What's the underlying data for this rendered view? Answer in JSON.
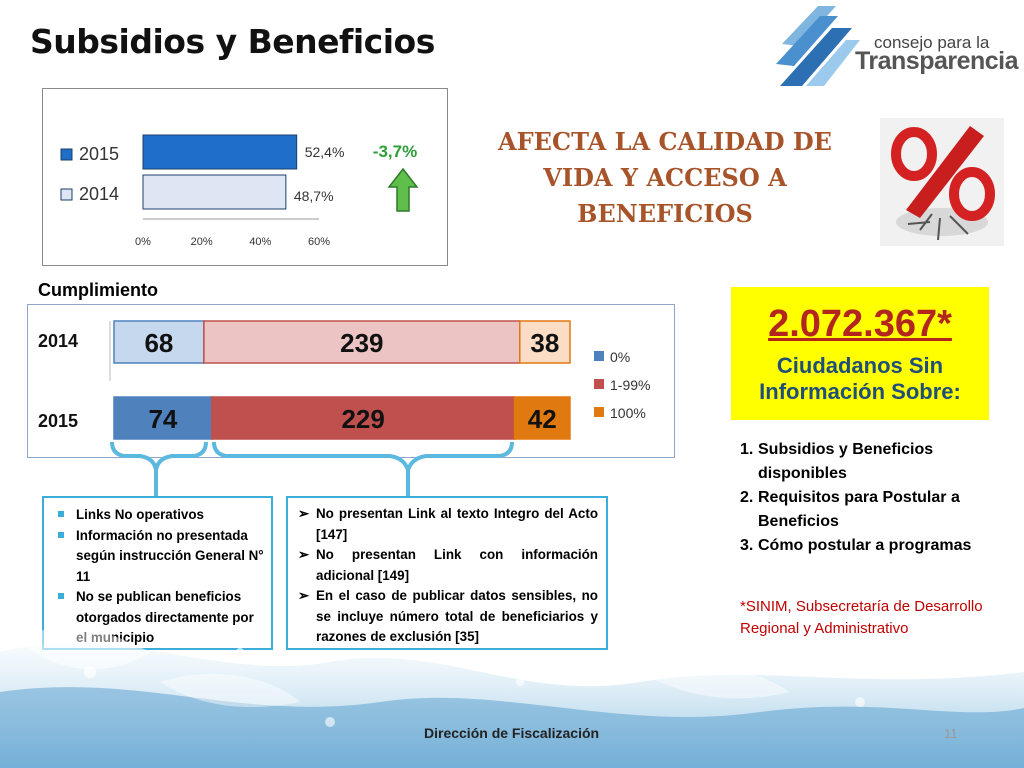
{
  "slide": {
    "title": "Subsidios y Beneficios",
    "logo_line1": "consejo para la",
    "logo_line2": "Transparencia",
    "headline": "AFECTA LA CALIDAD DE VIDA Y ACCESO A BENEFICIOS",
    "cumplimiento_label": "Cumplimiento",
    "big_number": "2.072.367*",
    "big_number_caption_line1": "Ciudadanos Sin",
    "big_number_caption_line2": "Información Sobre:",
    "info_list": [
      {
        "n": "1.",
        "text": "Subsidios y Beneficios disponibles"
      },
      {
        "n": "2.",
        "text": "Requisitos para Postular a Beneficios"
      },
      {
        "n": "3.",
        "text": "Cómo postular a programas"
      }
    ],
    "source_note": "*SINIM, Subsecretaría de Desarrollo Regional y Administrativo",
    "box_left_items": [
      "Links No operativos",
      "Información no presentada según instrucción General N° 11",
      "No se publican beneficios otorgados directamente por el municipio"
    ],
    "box_right_items": [
      "No presentan Link al texto Integro del Acto [147]",
      "No presentan Link con información adicional [149]",
      "En el caso de publicar datos sensibles, no se incluye número total de beneficiarios y razones de exclusión [35]"
    ],
    "footer": "Dirección de Fiscalización",
    "page_number": "11"
  },
  "colors": {
    "bar_2015": "#1f6fc8",
    "bar_2014": "#dde6f2",
    "seg_0": "#4f81bd",
    "seg_0_2014": "#c5d8ee",
    "seg_1_99": "#c0504d",
    "seg_1_99_2014": "#ecc4c4",
    "seg_100": "#e07a10",
    "seg_100_2014": "#fbdcc4",
    "delta": "#2e9e38",
    "headline": "#a8542a",
    "big_number": "#b3261e"
  },
  "chart_data": [
    {
      "type": "bar",
      "orientation": "horizontal",
      "categories": [
        "2015",
        "2014"
      ],
      "values": [
        52.4,
        48.7
      ],
      "data_labels": [
        "52,4%",
        "48,7%"
      ],
      "legend": [
        "2015",
        "2014"
      ],
      "legend_placement": "left",
      "xlim": [
        0,
        60
      ],
      "x_ticks": [
        "0%",
        "20%",
        "40%",
        "60%"
      ],
      "annotation": "-3,7%",
      "grid": false
    },
    {
      "type": "bar",
      "orientation": "horizontal",
      "stacked": true,
      "categories": [
        "2014",
        "2015"
      ],
      "series": [
        {
          "name": "0%",
          "values": [
            68,
            74
          ]
        },
        {
          "name": "1-99%",
          "values": [
            239,
            229
          ]
        },
        {
          "name": "100%",
          "values": [
            38,
            42
          ]
        }
      ],
      "legend_placement": "right",
      "grid": false
    }
  ]
}
